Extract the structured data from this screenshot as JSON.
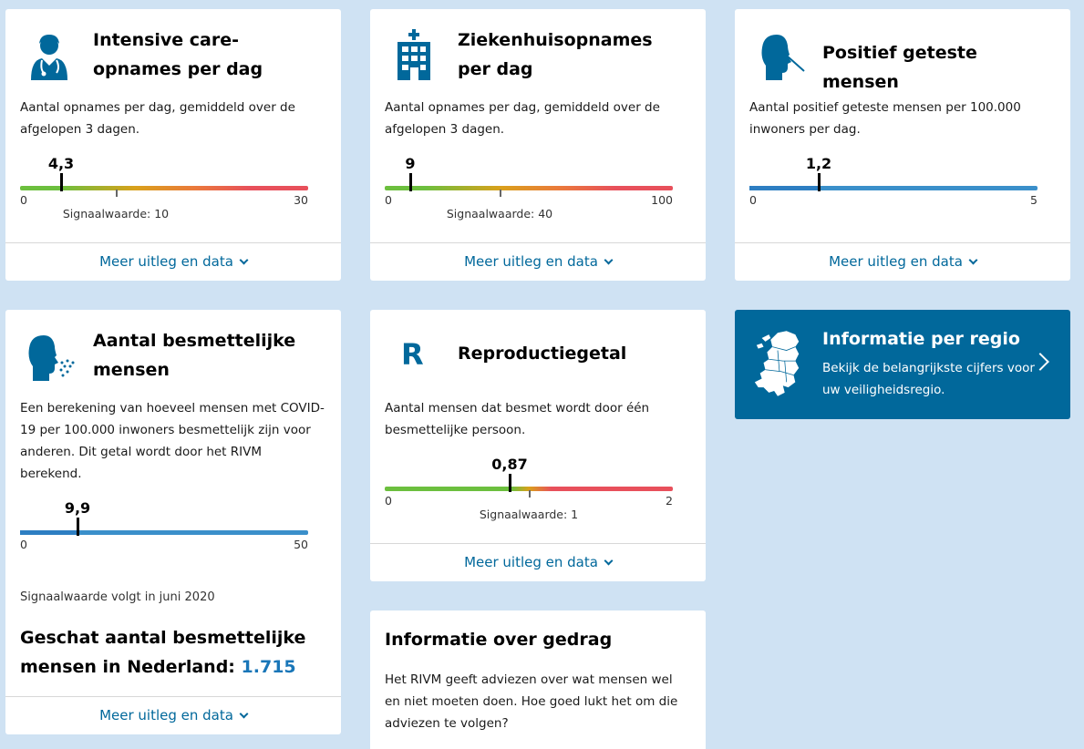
{
  "cards": {
    "ic": {
      "title": "Intensive care-opnames per dag",
      "icon": "doctor-icon",
      "description": "Aantal opnames per dag, gemiddeld over de afgelopen 3 dagen.",
      "value": "4,3",
      "value_num": 4.3,
      "min": "0",
      "max": "30",
      "max_num": 30,
      "signal_label": "Signaalwaarde: 10",
      "signal_num": 10,
      "footer": "Meer uitleg en data"
    },
    "hospital": {
      "title": "Ziekenhuisopnames per dag",
      "icon": "hospital-icon",
      "description": "Aantal opnames per dag, gemiddeld over de afgelopen 3 dagen.",
      "value": "9",
      "value_num": 9,
      "min": "0",
      "max": "100",
      "max_num": 100,
      "signal_label": "Signaalwaarde: 40",
      "signal_num": 40,
      "footer": "Meer uitleg en data"
    },
    "positive": {
      "title": "Positief geteste mensen",
      "icon": "nasal-swab-icon",
      "description": "Aantal positief geteste mensen per 100.000 inwoners per dag.",
      "value": "1,2",
      "value_num": 1.2,
      "min": "0",
      "max": "5",
      "max_num": 5,
      "footer": "Meer uitleg en data"
    },
    "infectious": {
      "title": "Aantal besmettelijke mensen",
      "icon": "coughing-person-icon",
      "description": "Een berekening van hoeveel mensen met COVID-19 per 100.000 inwoners besmettelijk zijn voor anderen. Dit getal wordt door het RIVM berekend.",
      "value": "9,9",
      "value_num": 9.9,
      "min": "0",
      "max": "50",
      "max_num": 50,
      "signal_note": "Signaalwaarde volgt in juni 2020",
      "estimate_label": "Geschat aantal besmettelijke mensen in Nederland:",
      "estimate_value": "1.715",
      "footer": "Meer uitleg en data"
    },
    "reproduction": {
      "title": "Reproductiegetal",
      "icon_letter": "R",
      "description": "Aantal mensen dat besmet wordt door één besmettelijke persoon.",
      "value": "0,87",
      "value_num": 0.87,
      "min": "0",
      "max": "2",
      "max_num": 2,
      "signal_label": "Signaalwaarde: 1",
      "signal_num": 1,
      "footer": "Meer uitleg en data"
    },
    "region": {
      "title": "Informatie per regio",
      "icon": "netherlands-map-icon",
      "description": "Bekijk de belangrijkste cijfers voor uw veiligheidsregio."
    },
    "behaviour": {
      "title": "Informatie over gedrag",
      "description": "Het RIVM geeft adviezen over wat mensen wel en niet moeten doen. Hoe goed lukt het om die adviezen te volgen?"
    }
  },
  "colors": {
    "background": "#cfe2f3",
    "accent": "#01689b",
    "gauge_green": "#6cbf3e",
    "gauge_yellow": "#d9a11b",
    "gauge_red": "#e8505b",
    "gauge_blue": "#3a8fca"
  }
}
